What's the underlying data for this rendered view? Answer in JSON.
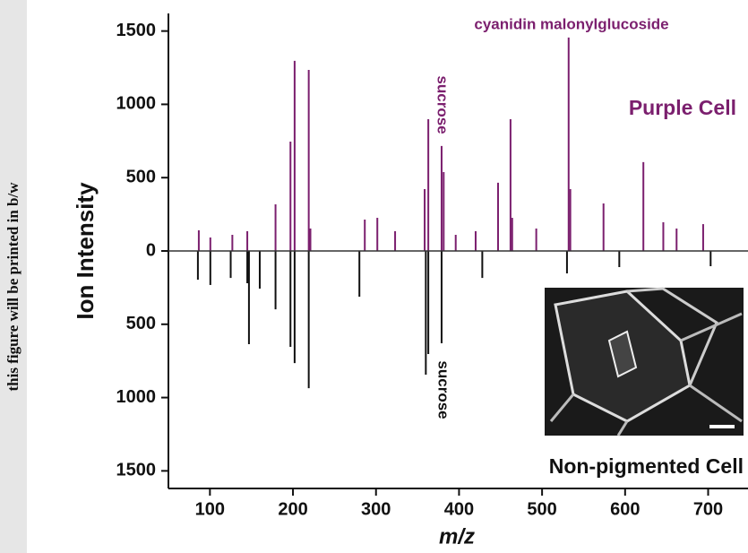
{
  "chart_data": {
    "type": "stem",
    "side_note": "this figure will be printed in b/w",
    "x_label": "m/z",
    "y_label": "Ion Intensity",
    "xlim": [
      50,
      748
    ],
    "ylim": [
      -1620,
      1620
    ],
    "xticks": [
      100,
      200,
      300,
      400,
      500,
      600,
      700
    ],
    "yticks": [
      {
        "value": -1500,
        "label": "1500"
      },
      {
        "value": -1000,
        "label": "1000"
      },
      {
        "value": -500,
        "label": "500"
      },
      0,
      500,
      1000,
      1500
    ],
    "series": [
      {
        "name": "Purple Cell",
        "color": "#7b1f6e",
        "x": [
          86.6,
          100.5,
          127,
          145,
          179,
          197,
          202,
          219,
          221,
          286.5,
          301.6,
          323,
          358.6,
          363,
          379,
          381.5,
          396,
          420,
          447,
          462,
          464,
          493,
          532,
          534,
          574,
          622,
          646,
          662,
          694
        ],
        "values": [
          141,
          92,
          110,
          135,
          318,
          746,
          1297,
          1235,
          153,
          214,
          226,
          135,
          422,
          899,
          716,
          538,
          110,
          135,
          465,
          899,
          226,
          153,
          1456,
          422,
          324,
          606,
          196,
          153,
          183
        ]
      },
      {
        "name": "Non-pigmented Cell",
        "color": "#111111",
        "x": [
          85.5,
          100.5,
          125,
          145,
          147,
          160,
          179,
          197,
          202,
          219,
          280,
          360,
          363,
          379,
          428,
          530,
          593,
          703
        ],
        "values": [
          -196,
          -232,
          -184,
          -220,
          -636,
          -257,
          -398,
          -654,
          -765,
          -936,
          -312,
          -844,
          -703,
          -630,
          -184,
          -153,
          -110,
          -104
        ]
      }
    ],
    "annotations": [
      "cyanidin malonylglucoside",
      "sucrose",
      "sucrose"
    ]
  }
}
